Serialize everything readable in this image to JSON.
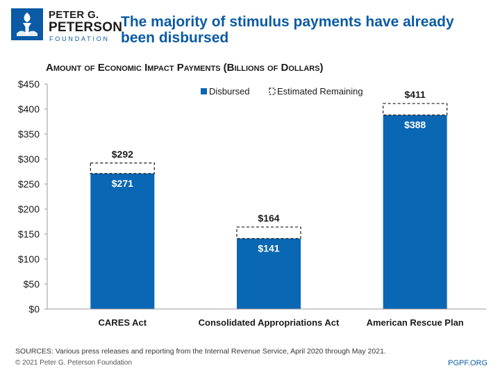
{
  "logo": {
    "line1": "PETER G.",
    "line2": "PETERSON",
    "line3": "FOUNDATION",
    "color": "#0a5aa5"
  },
  "header": {
    "title": "The majority of stimulus payments have already been disbursed"
  },
  "chart_data": {
    "type": "bar",
    "title": "Amount of Economic Impact Payments (Billions of Dollars)",
    "categories": [
      "CARES Act",
      "Consolidated Appropriations Act",
      "American Rescue Plan"
    ],
    "series": [
      {
        "name": "Disbursed",
        "values": [
          271,
          141,
          388
        ],
        "labels": [
          "$271",
          "$141",
          "$388"
        ],
        "color": "#0a67b4",
        "style": "solid"
      },
      {
        "name": "Estimated Remaining",
        "values": [
          21,
          23,
          23
        ],
        "style": "dashed-outline"
      }
    ],
    "totals": [
      292,
      164,
      411
    ],
    "total_labels": [
      "$292",
      "$164",
      "$411"
    ],
    "stacked": true,
    "ylim": [
      0,
      450
    ],
    "yticks": [
      0,
      50,
      100,
      150,
      200,
      250,
      300,
      350,
      400,
      450
    ],
    "ytick_labels": [
      "$0",
      "$50",
      "$100",
      "$150",
      "$200",
      "$250",
      "$300",
      "$350",
      "$400",
      "$450"
    ],
    "xlabel": "",
    "ylabel": "",
    "grid": false,
    "legend": "top-right"
  },
  "footer": {
    "source": "SOURCES: Various press releases and reporting from the Internal Revenue Service, April 2020 through May 2021.",
    "copyright": "© 2021 Peter G. Peterson Foundation",
    "site": "PGPF.ORG"
  }
}
